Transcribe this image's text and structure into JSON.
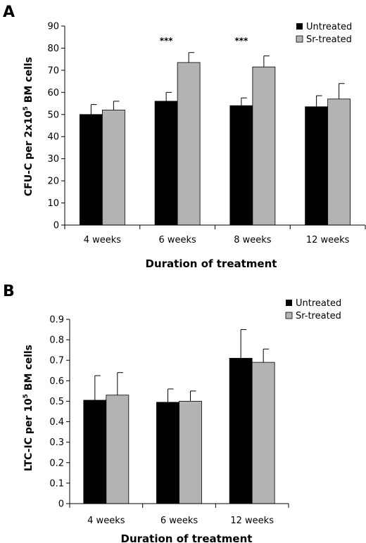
{
  "chart_data": [
    {
      "type": "bar",
      "panel_label": "A",
      "categories": [
        "4 weeks",
        "6 weeks",
        "8 weeks",
        "12 weeks"
      ],
      "series": [
        {
          "name": "Untreated",
          "color": "#000000",
          "values": [
            50,
            56,
            54,
            53.5
          ],
          "errors": [
            4.5,
            4,
            3.5,
            5
          ]
        },
        {
          "name": "Sr-treated",
          "color": "#b3b3b3",
          "values": [
            52,
            73.5,
            71.5,
            57
          ],
          "errors": [
            4,
            4.5,
            5,
            7
          ]
        }
      ],
      "significance": [
        "",
        "***",
        "***",
        ""
      ],
      "ylabel_main": "CFU-C per 2x10",
      "ylabel_sup": "5",
      "ylabel_end": " BM cells",
      "xlabel": "Duration of treatment",
      "ylim": [
        0,
        90
      ],
      "yticks": [
        "0",
        "10",
        "20",
        "30",
        "40",
        "50",
        "60",
        "70",
        "80",
        "90"
      ],
      "legend_position": "top-right",
      "grid": false
    },
    {
      "type": "bar",
      "panel_label": "B",
      "categories": [
        "4 weeks",
        "6 weeks",
        "12 weeks"
      ],
      "series": [
        {
          "name": "Untreated",
          "color": "#000000",
          "values": [
            0.505,
            0.495,
            0.71
          ],
          "errors": [
            0.12,
            0.065,
            0.14
          ]
        },
        {
          "name": "Sr-treated",
          "color": "#b3b3b3",
          "values": [
            0.53,
            0.5,
            0.69
          ],
          "errors": [
            0.11,
            0.05,
            0.065
          ]
        }
      ],
      "ylabel_main": "LTC-IC per 10",
      "ylabel_sup": "5",
      "ylabel_end": " BM cells",
      "xlabel": "Duration of treatment",
      "ylim": [
        0,
        0.9
      ],
      "yticks": [
        "0",
        "0.1",
        "0.2",
        "0.3",
        "0.4",
        "0.5",
        "0.6",
        "0.7",
        "0.8",
        "0.9"
      ],
      "legend_position": "top-right",
      "grid": false
    }
  ]
}
